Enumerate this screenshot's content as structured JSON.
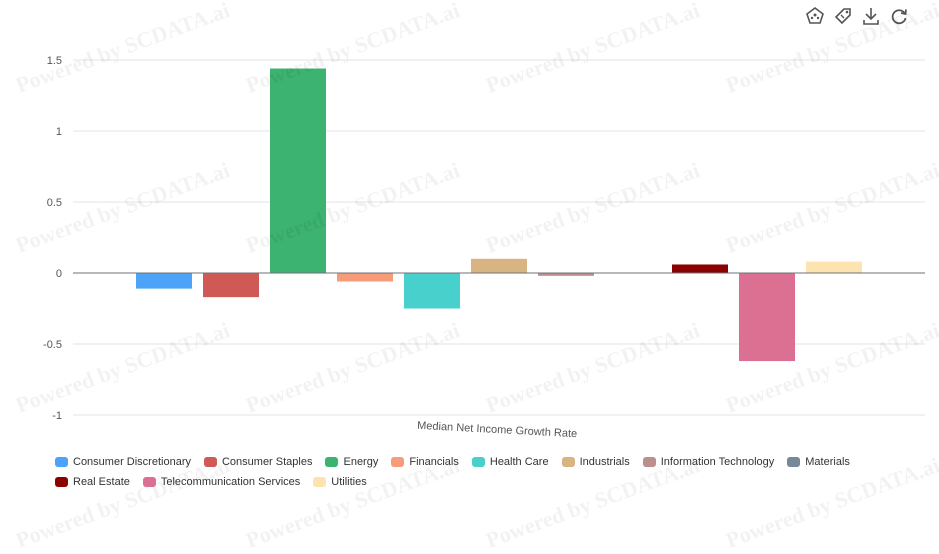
{
  "watermark_text": "Powered by SCDATA.ai",
  "toolbar": {
    "items": [
      {
        "name": "chart-type-icon"
      },
      {
        "name": "tag-icon"
      },
      {
        "name": "download-icon"
      },
      {
        "name": "refresh-icon"
      }
    ]
  },
  "chart_data": {
    "type": "bar",
    "title": "",
    "xlabel": "Median Net Income Growth Rate",
    "ylabel": "",
    "ylim": [
      -1,
      1.5
    ],
    "yticks": [
      1.5,
      1,
      0.5,
      0,
      -0.5,
      -1
    ],
    "ytick_labels": [
      "1.5",
      "1",
      "0.5",
      "0",
      "-0.5",
      "-1"
    ],
    "grid": true,
    "legend_position": "bottom",
    "series": [
      {
        "name": "Consumer Discretionary",
        "value": -0.11,
        "color": "#4da3f7"
      },
      {
        "name": "Consumer Staples",
        "value": -0.17,
        "color": "#cf5a55"
      },
      {
        "name": "Energy",
        "value": 1.44,
        "color": "#3cb371"
      },
      {
        "name": "Financials",
        "value": -0.06,
        "color": "#f79b7a"
      },
      {
        "name": "Health Care",
        "value": -0.25,
        "color": "#48d1cc"
      },
      {
        "name": "Industrials",
        "value": 0.1,
        "color": "#d8b483"
      },
      {
        "name": "Information Technology",
        "value": -0.02,
        "color": "#bc8f8f"
      },
      {
        "name": "Materials",
        "value": 0,
        "color": "#778899"
      },
      {
        "name": "Real Estate",
        "value": 0.06,
        "color": "#8b0000"
      },
      {
        "name": "Telecommunication Services",
        "value": -0.62,
        "color": "#db7093"
      },
      {
        "name": "Utilities",
        "value": 0.08,
        "color": "#fde3b0"
      }
    ]
  }
}
